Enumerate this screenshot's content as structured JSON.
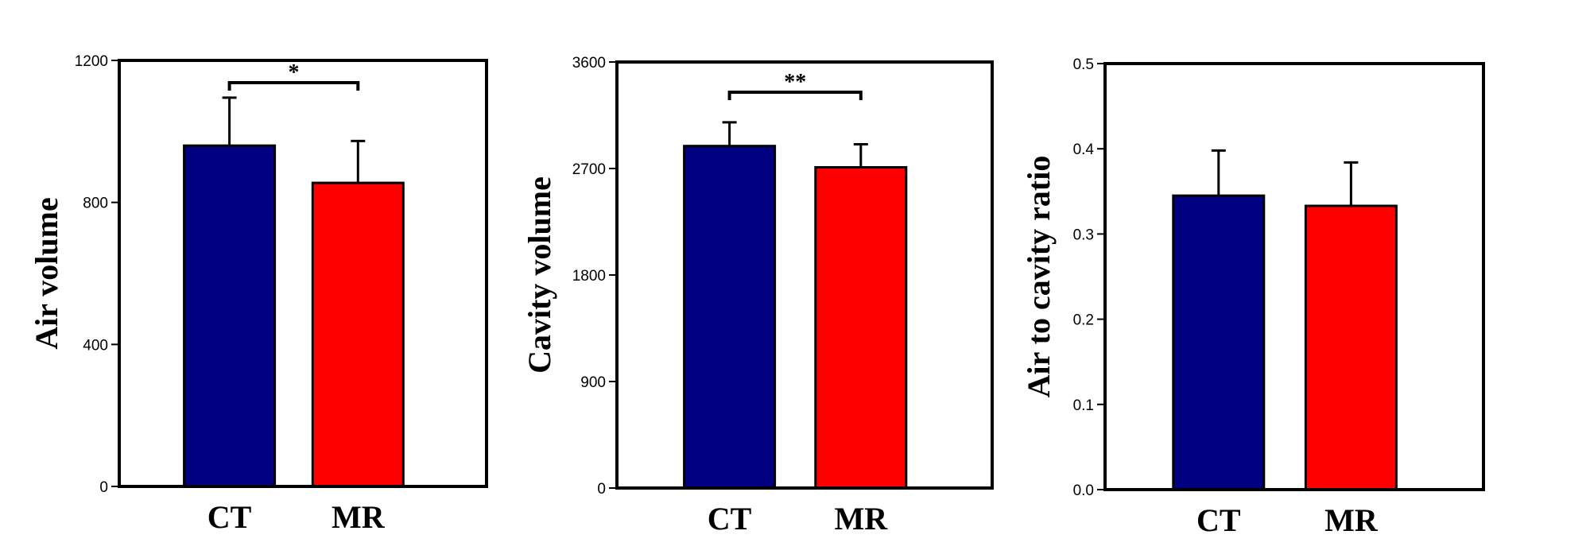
{
  "chart_data": [
    {
      "type": "bar",
      "categories": [
        "CT",
        "MR"
      ],
      "values": [
        960,
        855
      ],
      "errors": [
        135,
        118
      ],
      "colors": [
        "#000080",
        "#ff0000"
      ],
      "ylabel": "Air volume",
      "ylim": [
        0,
        1200
      ],
      "yticks": [
        "0",
        "400",
        "800",
        "1200"
      ],
      "significance": {
        "between": [
          "CT",
          "MR"
        ],
        "label": "*"
      },
      "grid": false,
      "legend": "none"
    },
    {
      "type": "bar",
      "categories": [
        "CT",
        "MR"
      ],
      "values": [
        2890,
        2710
      ],
      "errors": [
        200,
        195
      ],
      "colors": [
        "#000080",
        "#ff0000"
      ],
      "ylabel": "Cavity volume",
      "ylim": [
        0,
        3600
      ],
      "yticks": [
        "0",
        "900",
        "1800",
        "2700",
        "3600"
      ],
      "significance": {
        "between": [
          "CT",
          "MR"
        ],
        "label": "**"
      },
      "grid": false,
      "legend": "none"
    },
    {
      "type": "bar",
      "categories": [
        "CT",
        "MR"
      ],
      "values": [
        0.345,
        0.333
      ],
      "errors": [
        0.053,
        0.051
      ],
      "colors": [
        "#000080",
        "#ff0000"
      ],
      "ylabel": "Air to cavity ratio",
      "ylim": [
        0,
        0.5
      ],
      "yticks": [
        "0.0",
        "0.1",
        "0.2",
        "0.3",
        "0.4",
        "0.5"
      ],
      "grid": false,
      "legend": "none"
    }
  ]
}
